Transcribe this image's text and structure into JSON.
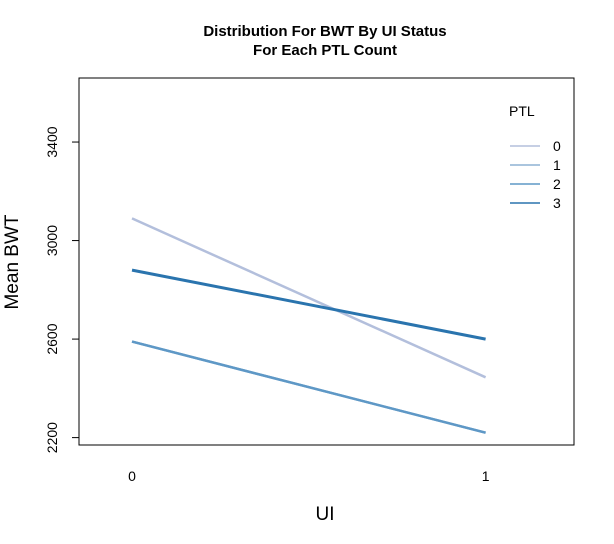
{
  "chart_data": {
    "type": "line",
    "title": "Distribution For BWT By UI Status",
    "subtitle": "For Each PTL Count",
    "xlabel": "UI",
    "ylabel": "Mean BWT",
    "x": [
      0,
      1
    ],
    "x_tick_labels": [
      "0",
      "1"
    ],
    "xlim": [
      -0.15,
      1.25
    ],
    "ylim": [
      2170,
      3660
    ],
    "y_ticks": [
      2200,
      2600,
      3000,
      3400
    ],
    "y_tick_labels": [
      "2200",
      "2600",
      "3000",
      "3400"
    ],
    "legend_title": "PTL",
    "legend_position": "top-right",
    "grid": false,
    "series": [
      {
        "name": "0",
        "values": [
          3090,
          2445
        ],
        "color": "#b3bfdc",
        "lw": 2.5
      },
      {
        "name": "1",
        "values": [
          2590,
          2220
        ],
        "color": "#8db2d4",
        "lw": 2.5
      },
      {
        "name": "2",
        "values": [
          2590,
          2220
        ],
        "color": "#5e98c6",
        "lw": 2.5
      },
      {
        "name": "3",
        "values": [
          2880,
          2600
        ],
        "color": "#2a74ae",
        "lw": 3
      }
    ]
  }
}
